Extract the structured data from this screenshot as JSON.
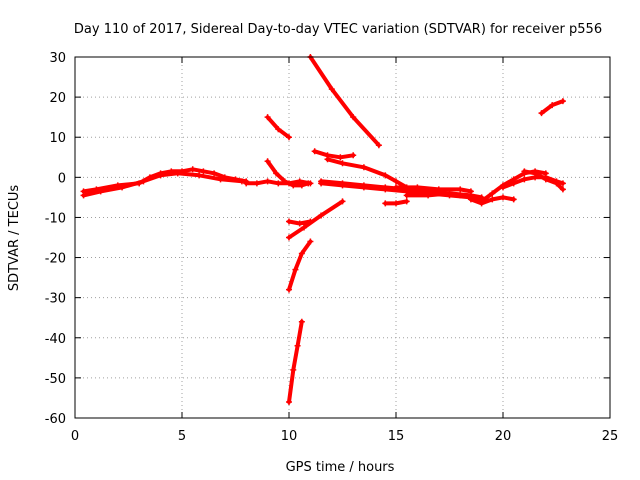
{
  "chart_data": {
    "type": "scatter",
    "title": "Day 110 of 2017, Sidereal Day-to-day VTEC variation (SDTVAR) for receiver p556",
    "xlabel": "GPS time / hours",
    "ylabel": "SDTVAR / TECUs",
    "xlim": [
      0,
      25
    ],
    "ylim": [
      -60,
      30
    ],
    "xticks": [
      "0",
      "5",
      "10",
      "15",
      "20",
      "25"
    ],
    "yticks": [
      "30",
      "20",
      "10",
      "0",
      "-10",
      "-20",
      "-30",
      "-40",
      "-50",
      "-60"
    ],
    "grid": true,
    "legend": "none",
    "marker_color": "#ff0000",
    "series": [
      {
        "x": [
          0.4,
          1.0,
          2.0,
          3.0,
          3.5,
          4.0,
          4.5,
          5.0,
          5.5,
          6.0,
          6.5,
          7.0,
          7.5,
          8.0
        ],
        "y": [
          -3.5,
          -3.0,
          -2.0,
          -1.5,
          0.0,
          1.0,
          1.5,
          1.5,
          2.0,
          1.5,
          1.0,
          0.0,
          -0.5,
          -1.0
        ]
      },
      {
        "x": [
          0.4,
          1.2,
          2.2,
          3.2,
          4.0,
          4.8,
          5.8,
          6.8,
          7.8
        ],
        "y": [
          -4.5,
          -3.5,
          -2.5,
          -1.0,
          0.5,
          1.0,
          0.5,
          -0.5,
          -1.0
        ]
      },
      {
        "x": [
          8.0,
          8.5,
          9.0,
          9.5,
          10.0,
          10.5,
          11.0
        ],
        "y": [
          -1.5,
          -1.5,
          -1.0,
          -1.5,
          -1.5,
          -1.0,
          -1.5
        ]
      },
      {
        "x": [
          9.0,
          9.4,
          9.8,
          10.2,
          10.6,
          10.9
        ],
        "y": [
          4.0,
          1.0,
          -1.0,
          -2.0,
          -2.0,
          -1.5
        ]
      },
      {
        "x": [
          9.0,
          9.5,
          10.0
        ],
        "y": [
          15.0,
          12.0,
          10.0
        ]
      },
      {
        "x": [
          11.0,
          12.0,
          13.0,
          14.2
        ],
        "y": [
          30.0,
          22.0,
          15.0,
          8.0
        ]
      },
      {
        "x": [
          11.2,
          11.8,
          12.4,
          13.0
        ],
        "y": [
          6.5,
          5.5,
          5.0,
          5.5
        ]
      },
      {
        "x": [
          11.8,
          12.5,
          13.5,
          14.5,
          15.0,
          15.5
        ],
        "y": [
          4.5,
          3.5,
          2.5,
          0.5,
          -1.0,
          -2.5
        ]
      },
      {
        "x": [
          11.5,
          12.5,
          13.5,
          14.5,
          15.5,
          16.5,
          17.5,
          18.5,
          19.0
        ],
        "y": [
          -1.0,
          -1.5,
          -2.0,
          -2.5,
          -3.0,
          -3.5,
          -4.0,
          -4.5,
          -5.0
        ]
      },
      {
        "x": [
          11.5,
          12.5,
          13.5,
          14.5,
          15.5,
          16.5,
          17.5,
          18.5,
          19.0
        ],
        "y": [
          -1.5,
          -2.0,
          -2.5,
          -3.0,
          -3.5,
          -4.0,
          -4.5,
          -5.0,
          -5.5
        ]
      },
      {
        "x": [
          14.5,
          15.0,
          15.5
        ],
        "y": [
          -6.5,
          -6.5,
          -6.0
        ]
      },
      {
        "x": [
          15.0,
          16.0,
          17.0,
          18.0,
          18.5
        ],
        "y": [
          -2.5,
          -2.5,
          -3.0,
          -3.0,
          -3.5
        ]
      },
      {
        "x": [
          15.5,
          16.5,
          17.5,
          18.0
        ],
        "y": [
          -4.5,
          -4.5,
          -4.0,
          -4.5
        ]
      },
      {
        "x": [
          18.5,
          19.0,
          19.5,
          20.0,
          20.5
        ],
        "y": [
          -5.5,
          -6.5,
          -5.5,
          -5.0,
          -5.5
        ]
      },
      {
        "x": [
          19.0,
          19.5,
          20.0,
          20.5,
          21.0,
          21.5,
          22.0
        ],
        "y": [
          -6.0,
          -4.0,
          -2.0,
          -0.5,
          1.0,
          1.5,
          1.0
        ]
      },
      {
        "x": [
          20.0,
          20.5,
          21.0,
          21.5,
          22.0,
          22.5,
          22.8
        ],
        "y": [
          -2.5,
          -1.5,
          -0.5,
          0.0,
          0.0,
          -1.0,
          -1.5
        ]
      },
      {
        "x": [
          21.0,
          21.5,
          22.0,
          22.5,
          22.8
        ],
        "y": [
          1.5,
          1.0,
          -0.5,
          -1.5,
          -3.0
        ]
      },
      {
        "x": [
          21.8,
          22.3,
          22.8
        ],
        "y": [
          16.0,
          18.0,
          19.0
        ]
      },
      {
        "x": [
          10.0,
          10.5,
          11.0
        ],
        "y": [
          -11.0,
          -11.5,
          -11.0
        ]
      },
      {
        "x": [
          10.0,
          10.7,
          11.5,
          12.5
        ],
        "y": [
          -15.0,
          -12.5,
          -9.5,
          -6.0
        ]
      },
      {
        "x": [
          10.0,
          10.3,
          10.6,
          11.0
        ],
        "y": [
          -28.0,
          -23.0,
          -19.0,
          -16.0
        ]
      },
      {
        "x": [
          10.0,
          10.2,
          10.4,
          10.6
        ],
        "y": [
          -56.0,
          -48.0,
          -42.0,
          -36.0
        ]
      }
    ]
  }
}
